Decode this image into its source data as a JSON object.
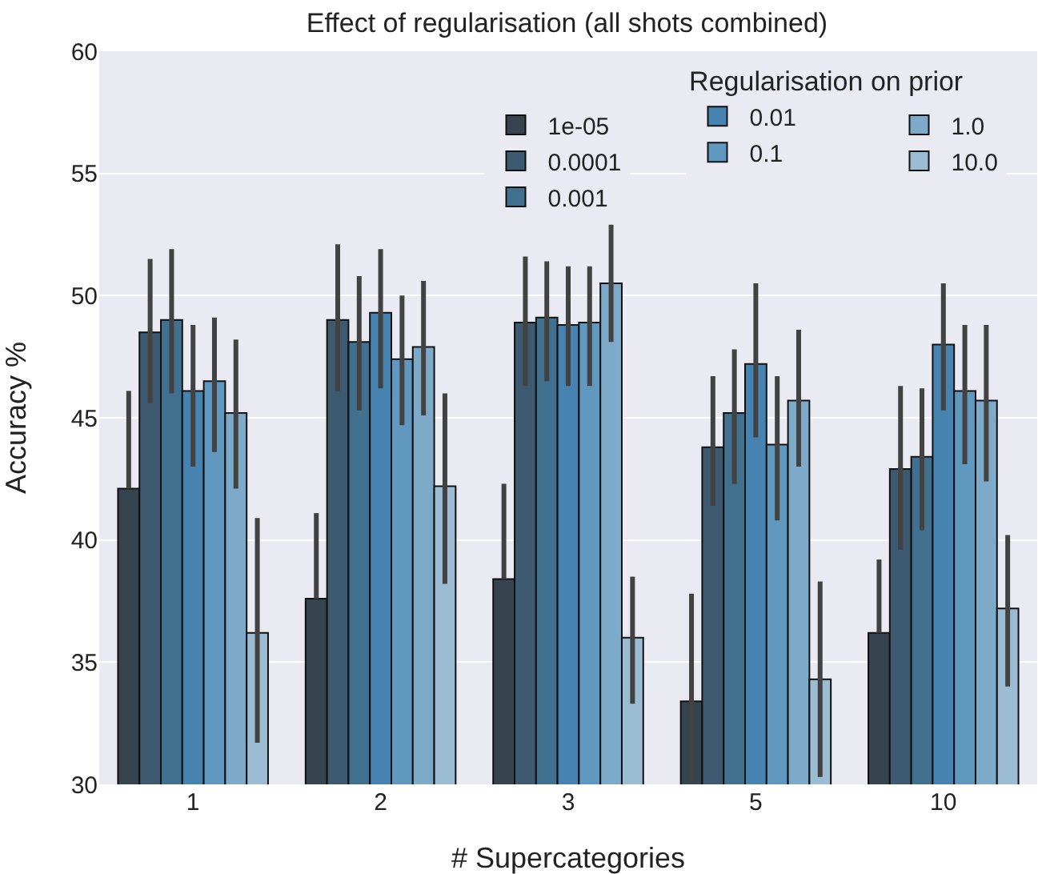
{
  "chart_data": {
    "type": "bar",
    "title": "Effect of regularisation (all shots combined)",
    "xlabel": "# Supercategories",
    "ylabel": "Accuracy %",
    "legend_title": "Regularisation on prior",
    "categories": [
      "1",
      "2",
      "3",
      "5",
      "10"
    ],
    "series": [
      {
        "name": "1e-05",
        "color": "#36444f",
        "values": [
          42.1,
          37.6,
          38.4,
          33.4,
          36.2
        ],
        "errors": [
          [
            42.1,
            46.1
          ],
          [
            37.6,
            41.1
          ],
          [
            38.4,
            42.3
          ],
          [
            30.1,
            37.8
          ],
          [
            36.2,
            39.2
          ]
        ]
      },
      {
        "name": "0.0001",
        "color": "#3d5a71",
        "values": [
          48.5,
          49.0,
          48.9,
          43.8,
          42.9
        ],
        "errors": [
          [
            45.6,
            51.5
          ],
          [
            46.1,
            52.1
          ],
          [
            46.3,
            51.6
          ],
          [
            41.4,
            46.7
          ],
          [
            39.6,
            46.3
          ]
        ]
      },
      {
        "name": "0.001",
        "color": "#42708f",
        "values": [
          49.0,
          48.1,
          49.1,
          45.2,
          43.4
        ],
        "errors": [
          [
            46.0,
            51.9
          ],
          [
            45.3,
            50.8
          ],
          [
            46.5,
            51.4
          ],
          [
            42.3,
            47.8
          ],
          [
            40.4,
            46.2
          ]
        ]
      },
      {
        "name": "0.01",
        "color": "#4683b0",
        "values": [
          46.1,
          49.3,
          48.8,
          47.2,
          48.0
        ],
        "errors": [
          [
            43.0,
            48.8
          ],
          [
            46.2,
            51.9
          ],
          [
            46.3,
            51.2
          ],
          [
            44.2,
            50.5
          ],
          [
            45.3,
            50.5
          ]
        ]
      },
      {
        "name": "0.1",
        "color": "#6198c0",
        "values": [
          46.5,
          47.4,
          48.9,
          43.9,
          46.1
        ],
        "errors": [
          [
            43.6,
            49.1
          ],
          [
            44.7,
            50.0
          ],
          [
            46.3,
            51.2
          ],
          [
            40.8,
            46.7
          ],
          [
            43.1,
            48.8
          ]
        ]
      },
      {
        "name": "1.0",
        "color": "#7eaac9",
        "values": [
          45.2,
          47.9,
          50.5,
          45.7,
          45.7
        ],
        "errors": [
          [
            42.1,
            48.2
          ],
          [
            45.1,
            50.6
          ],
          [
            48.1,
            52.9
          ],
          [
            43.0,
            48.6
          ],
          [
            42.4,
            48.8
          ]
        ]
      },
      {
        "name": "10.0",
        "color": "#9bbcd3",
        "values": [
          36.2,
          42.2,
          36.0,
          34.3,
          37.2
        ],
        "errors": [
          [
            31.7,
            40.9
          ],
          [
            38.2,
            46.0
          ],
          [
            33.3,
            38.5
          ],
          [
            30.3,
            38.3
          ],
          [
            34.0,
            40.2
          ]
        ]
      }
    ],
    "ylim": [
      30,
      60
    ],
    "yticks": [
      30,
      35,
      40,
      45,
      50,
      55,
      60
    ],
    "grid": "y",
    "legend": "top right"
  }
}
